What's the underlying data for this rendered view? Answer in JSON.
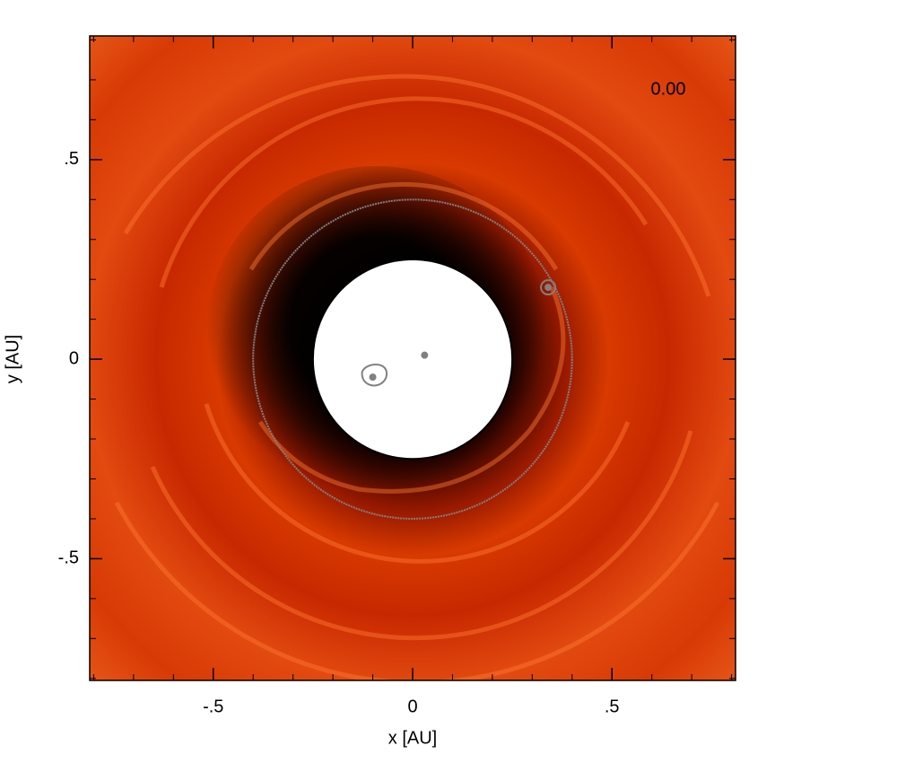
{
  "chart_data": {
    "type": "scatter",
    "annotation": "0.00",
    "xlabel": "x [AU]",
    "ylabel": "y [AU]",
    "xlim": [
      -0.81,
      0.81
    ],
    "ylim": [
      -0.805,
      0.81
    ],
    "xticks": [
      {
        "value": -0.5,
        "label": "-.5"
      },
      0,
      {
        "value": 0.5,
        "label": ".5"
      }
    ],
    "yticks": [
      {
        "value": -0.5,
        "label": "-.5"
      },
      0,
      {
        "value": 0.5,
        "label": ".5"
      }
    ],
    "xminorticks": [
      -0.8,
      -0.7,
      -0.6,
      -0.5,
      -0.4,
      -0.3,
      -0.2,
      -0.1,
      0,
      0.1,
      0.2,
      0.3,
      0.4,
      0.5,
      0.6,
      0.7,
      0.8
    ],
    "yminorticks": [
      -0.8,
      -0.7,
      -0.6,
      -0.5,
      -0.4,
      -0.3,
      -0.2,
      -0.1,
      0,
      0.1,
      0.2,
      0.3,
      0.4,
      0.5,
      0.6,
      0.7,
      0.8
    ],
    "x": [
      0.03,
      -0.1,
      0.34
    ],
    "y": [
      0.01,
      -0.045,
      0.18
    ],
    "color": "#808080",
    "circle_radii": [
      0.25,
      0.4
    ]
  }
}
